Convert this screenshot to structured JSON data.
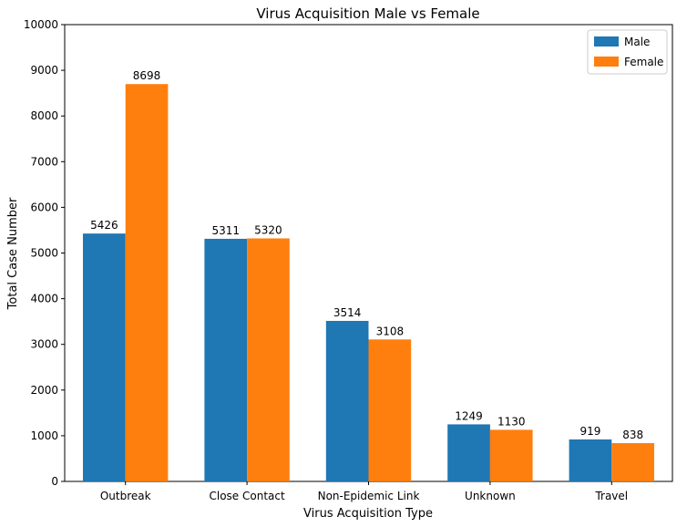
{
  "chart_data": {
    "type": "bar",
    "title": "Virus Acquisition Male vs Female",
    "xlabel": "Virus Acquisition Type",
    "ylabel": "Total Case Number",
    "categories": [
      "Outbreak",
      "Close Contact",
      "Non-Epidemic Link",
      "Unknown",
      "Travel"
    ],
    "series": [
      {
        "name": "Male",
        "values": [
          5426,
          5311,
          3514,
          1249,
          919
        ],
        "color": "#1f77b4"
      },
      {
        "name": "Female",
        "values": [
          8698,
          5320,
          3108,
          1130,
          838
        ],
        "color": "#ff7f0e"
      }
    ],
    "ylim": [
      0,
      10000
    ],
    "yticks": [
      "0",
      "1000",
      "2000",
      "3000",
      "4000",
      "5000",
      "6000",
      "7000",
      "8000",
      "9000",
      "10000"
    ],
    "grid": false,
    "legend_position": "top-right",
    "data_labels": true
  }
}
